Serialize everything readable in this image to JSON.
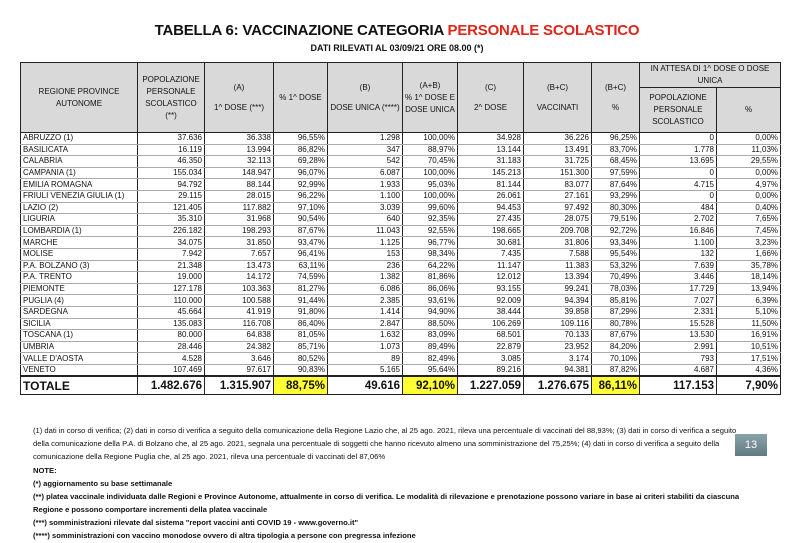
{
  "title_prefix": "TABELLA 6: VACCINAZIONE CATEGORIA ",
  "title_highlight": "PERSONALE SCOLASTICO",
  "subtitle": "DATI RILEVATI AL 03/09/21 ORE 08.00  (*)",
  "headers": {
    "regione": "REGIONE PROVINCE AUTONOME",
    "popolazione": "POPOLAZIONE PERSONALE SCOLASTICO (**)",
    "a_tag": "(A)",
    "a": "1^ DOSE (***)",
    "pct1": "% 1^ DOSE",
    "b_tag": "(B)",
    "b": "DOSE UNICA (****)",
    "ab_tag": "(A+B)",
    "ab": "% 1^ DOSE E DOSE UNICA",
    "c_tag": "(C)",
    "c": "2^ DOSE",
    "bc_tag": "(B+C)",
    "bc": "VACCINATI",
    "bcp_tag": "(B+C)",
    "bcp": "%",
    "attesa": "IN ATTESA DI 1^ DOSE O DOSE UNICA",
    "attesa_pop": "POPOLAZIONE PERSONALE SCOLASTICO",
    "attesa_pct": "%"
  },
  "rows": [
    [
      "ABRUZZO (1)",
      "37.636",
      "36.338",
      "96,55%",
      "1.298",
      "100,00%",
      "34.928",
      "36.226",
      "96,25%",
      "0",
      "0,00%"
    ],
    [
      "BASILICATA",
      "16.119",
      "13.994",
      "86,82%",
      "347",
      "88,97%",
      "13.144",
      "13.491",
      "83,70%",
      "1.778",
      "11,03%"
    ],
    [
      "CALABRIA",
      "46.350",
      "32.113",
      "69,28%",
      "542",
      "70,45%",
      "31.183",
      "31.725",
      "68,45%",
      "13.695",
      "29,55%"
    ],
    [
      "CAMPANIA (1)",
      "155.034",
      "148.947",
      "96,07%",
      "6.087",
      "100,00%",
      "145.213",
      "151.300",
      "97,59%",
      "0",
      "0,00%"
    ],
    [
      "EMILIA ROMAGNA",
      "94.792",
      "88.144",
      "92,99%",
      "1.933",
      "95,03%",
      "81.144",
      "83.077",
      "87,64%",
      "4.715",
      "4,97%"
    ],
    [
      "FRIULI VENEZIA GIULIA (1)",
      "29.115",
      "28.015",
      "96,22%",
      "1.100",
      "100,00%",
      "26.061",
      "27.161",
      "93,29%",
      "0",
      "0,00%"
    ],
    [
      "LAZIO (2)",
      "121.405",
      "117.882",
      "97,10%",
      "3.039",
      "99,60%",
      "94.453",
      "97.492",
      "80,30%",
      "484",
      "0,40%"
    ],
    [
      "LIGURIA",
      "35.310",
      "31.968",
      "90,54%",
      "640",
      "92,35%",
      "27.435",
      "28.075",
      "79,51%",
      "2.702",
      "7,65%"
    ],
    [
      "LOMBARDIA (1)",
      "226.182",
      "198.293",
      "87,67%",
      "11.043",
      "92,55%",
      "198.665",
      "209.708",
      "92,72%",
      "16.846",
      "7,45%"
    ],
    [
      "MARCHE",
      "34.075",
      "31.850",
      "93,47%",
      "1.125",
      "96,77%",
      "30.681",
      "31.806",
      "93,34%",
      "1.100",
      "3,23%"
    ],
    [
      "MOLISE",
      "7.942",
      "7.657",
      "96,41%",
      "153",
      "98,34%",
      "7.435",
      "7.588",
      "95,54%",
      "132",
      "1,66%"
    ],
    [
      "P.A. BOLZANO (3)",
      "21.348",
      "13.473",
      "63,11%",
      "236",
      "64,22%",
      "11.147",
      "11.383",
      "53,32%",
      "7.639",
      "35,78%"
    ],
    [
      "P.A. TRENTO",
      "19.000",
      "14.172",
      "74,59%",
      "1.382",
      "81,86%",
      "12.012",
      "13.394",
      "70,49%",
      "3.446",
      "18,14%"
    ],
    [
      "PIEMONTE",
      "127.178",
      "103.363",
      "81,27%",
      "6.086",
      "86,06%",
      "93.155",
      "99.241",
      "78,03%",
      "17.729",
      "13,94%"
    ],
    [
      "PUGLIA (4)",
      "110.000",
      "100.588",
      "91,44%",
      "2.385",
      "93,61%",
      "92.009",
      "94.394",
      "85,81%",
      "7.027",
      "6,39%"
    ],
    [
      "SARDEGNA",
      "45.664",
      "41.919",
      "91,80%",
      "1.414",
      "94,90%",
      "38.444",
      "39.858",
      "87,29%",
      "2.331",
      "5,10%"
    ],
    [
      "SICILIA",
      "135.083",
      "116.708",
      "86,40%",
      "2.847",
      "88,50%",
      "106.269",
      "109.116",
      "80,78%",
      "15.528",
      "11,50%"
    ],
    [
      "TOSCANA  (1)",
      "80.000",
      "64.838",
      "81,05%",
      "1.632",
      "83,09%",
      "68.501",
      "70.133",
      "87,67%",
      "13.530",
      "16,91%"
    ],
    [
      "UMBRIA",
      "28.446",
      "24.382",
      "85,71%",
      "1.073",
      "89,49%",
      "22.879",
      "23.952",
      "84,20%",
      "2.991",
      "10,51%"
    ],
    [
      "VALLE D'AOSTA",
      "4.528",
      "3.646",
      "80,52%",
      "89",
      "82,49%",
      "3.085",
      "3.174",
      "70,10%",
      "793",
      "17,51%"
    ],
    [
      "VENETO",
      "107.469",
      "97.617",
      "90,83%",
      "5.165",
      "95,64%",
      "89.216",
      "94.381",
      "87,82%",
      "4.687",
      "4,36%"
    ]
  ],
  "total": [
    "TOTALE",
    "1.482.676",
    "1.315.907",
    "88,75%",
    "49.616",
    "92,10%",
    "1.227.059",
    "1.276.675",
    "86,11%",
    "117.153",
    "7,90%"
  ],
  "footnote": "(1) dati in corso di verifica; (2) dati in corso di verifica a seguito della comunicazione della Regione Lazio che, al 25 ago. 2021, rileva una percentuale di vaccinati del 88,93%; (3) dati in corso di verifica a seguito della comunicazione della P.A. di Bolzano che, al 25 ago. 2021, segnala una percentuale di soggetti che hanno ricevuto almeno una somministrazione del 75,25%; (4) dati in corso di verifica a seguito della comunicazione della Regione Puglia che, al 25 ago. 2021, rileva una percentuale di vaccinati del 87,06%",
  "notes_title": "NOTE:",
  "notes": [
    "(*) aggiornamento su base settimanale",
    "(**) platea vaccinale individuata dalle Regioni e Province Autonome, attualmente in corso di verifica. Le modalità di rilevazione e prenotazione possono variare in base ai criteri stabiliti da ciascuna Regione e possono comportare incrementi della platea vaccinale",
    "(***) somministrazioni rilevate dal sistema \"report vaccini anti COVID 19 - www.governo.it\"",
    "(****) somministrazioni con vaccino monodose ovvero di altra tipologia a persone con pregressa infezione"
  ],
  "page_number": "13",
  "highlight_color": "#ffff33"
}
